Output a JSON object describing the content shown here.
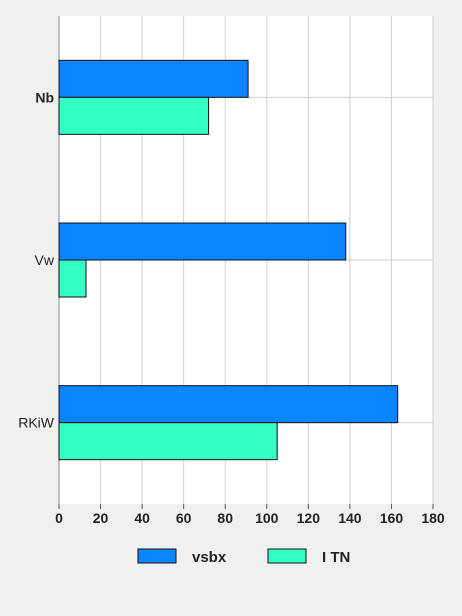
{
  "chart_data": {
    "type": "bar",
    "orientation": "horizontal",
    "categories": [
      "Nb",
      "Vw",
      "RKiW"
    ],
    "series": [
      {
        "name": "vsbx",
        "values": [
          91,
          138,
          163
        ],
        "color": "#0a84ff"
      },
      {
        "name": "I TN",
        "values": [
          72,
          13,
          105
        ],
        "color": "#33ffc4"
      }
    ],
    "xlim": [
      0,
      180
    ],
    "xticks": [
      "0",
      "20",
      "40",
      "60",
      "80",
      "100",
      "120",
      "140",
      "160",
      "180"
    ],
    "grid": true,
    "legend_position": "bottom"
  }
}
